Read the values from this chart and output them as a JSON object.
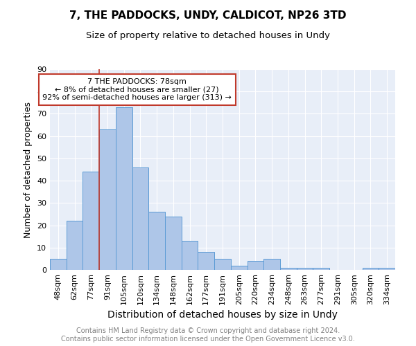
{
  "title": "7, THE PADDOCKS, UNDY, CALDICOT, NP26 3TD",
  "subtitle": "Size of property relative to detached houses in Undy",
  "xlabel": "Distribution of detached houses by size in Undy",
  "ylabel": "Number of detached properties",
  "categories": [
    "48sqm",
    "62sqm",
    "77sqm",
    "91sqm",
    "105sqm",
    "120sqm",
    "134sqm",
    "148sqm",
    "162sqm",
    "177sqm",
    "191sqm",
    "205sqm",
    "220sqm",
    "234sqm",
    "248sqm",
    "263sqm",
    "277sqm",
    "291sqm",
    "305sqm",
    "320sqm",
    "334sqm"
  ],
  "values": [
    5,
    22,
    44,
    63,
    73,
    46,
    26,
    24,
    13,
    8,
    5,
    2,
    4,
    5,
    1,
    1,
    1,
    0,
    0,
    1,
    1
  ],
  "bar_color": "#aec6e8",
  "bar_edge_color": "#5b9bd5",
  "vline_color": "#c0392b",
  "annotation_text": "7 THE PADDOCKS: 78sqm\n← 8% of detached houses are smaller (27)\n92% of semi-detached houses are larger (313) →",
  "annotation_box_color": "white",
  "annotation_box_edge": "#c0392b",
  "ylim": [
    0,
    90
  ],
  "yticks": [
    0,
    10,
    20,
    30,
    40,
    50,
    60,
    70,
    80,
    90
  ],
  "background_color": "#e8eef8",
  "footer_text": "Contains HM Land Registry data © Crown copyright and database right 2024.\nContains public sector information licensed under the Open Government Licence v3.0.",
  "title_fontsize": 11,
  "subtitle_fontsize": 9.5,
  "xlabel_fontsize": 10,
  "ylabel_fontsize": 9,
  "tick_fontsize": 8,
  "footer_fontsize": 7,
  "annot_fontsize": 8
}
